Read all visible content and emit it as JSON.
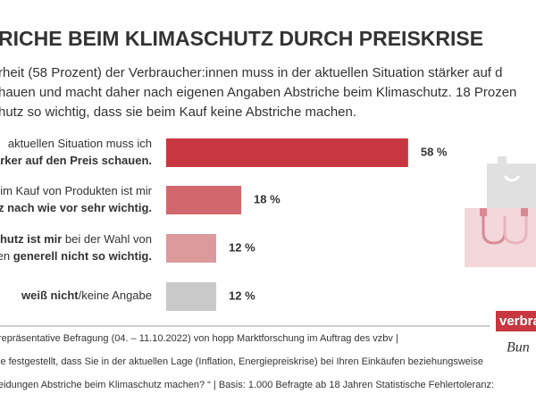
{
  "chart_data": {
    "type": "bar",
    "orientation": "horizontal",
    "title": "RICHE BEIM KLIMASCHUTZ DURCH PREISKRISE",
    "subtitle": [
      "rheit (58 Prozent) der Verbraucher:innen muss in der aktuellen Situation stärker auf d",
      "hauen und macht daher nach eigenen Angaben Abstriche beim Klimaschutz. 18 Prozen",
      "hutz so wichtig, dass sie beim Kauf keine Abstriche machen."
    ],
    "categories": [
      [
        [
          {
            "text": "aktuellen Situation muss ich",
            "bold": false
          }
        ],
        [
          {
            "text": "tärker auf den Preis schauen.",
            "bold": true
          }
        ]
      ],
      [
        [
          {
            "text": "im Kauf von Produkten ist mir",
            "bold": false
          }
        ],
        [
          {
            "text": "utz nach wie vor sehr wichtig.",
            "bold": true
          }
        ]
      ],
      [
        [
          {
            "text": "schutz ist mir",
            "bold": true
          },
          {
            "text": " bei der Wahl von",
            "bold": false
          }
        ],
        [
          {
            "text": "ten ",
            "bold": false
          },
          {
            "text": "generell nicht so wichtig.",
            "bold": true
          }
        ]
      ],
      [
        [
          {
            "text": "weiß nicht",
            "bold": true
          },
          {
            "text": "/keine Angabe",
            "bold": false
          }
        ]
      ]
    ],
    "values": [
      58,
      18,
      12,
      12
    ],
    "value_labels": [
      "58 %",
      "18 %",
      "12 %",
      "12 %"
    ],
    "colors": [
      "#c8373f",
      "#d2686d",
      "#dc9a9d",
      "#c9c9c9"
    ],
    "footer": [
      "repräsentative Befragung (04. – 11.10.2022) von hopp Marktforschung im Auftrag des vzbv |",
      "ie festgestellt, dass Sie in der aktuellen Lage (Inflation, Energiepreiskrise) bei Ihren Einkäufen beziehungsweise",
      "eidungen Abstriche beim Klimaschutz machen? “ | Basis: 1.000 Befragte ab 18 Jahren Statistische Fehlertoleranz:"
    ],
    "logo": [
      "verbrau",
      "Bun"
    ]
  }
}
